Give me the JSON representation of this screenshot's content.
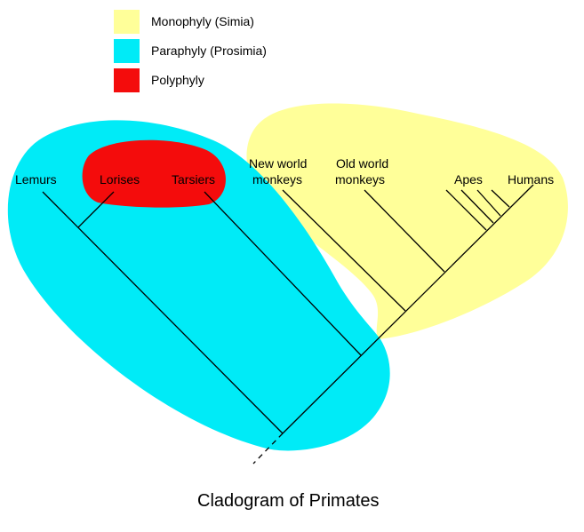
{
  "legend": {
    "items": [
      {
        "label": "Monophyly (Simia)",
        "color": "#ffff99"
      },
      {
        "label": "Paraphyly (Prosimia)",
        "color": "#00ebf7"
      },
      {
        "label": "Polyphyly",
        "color": "#f40c0c"
      }
    ]
  },
  "taxa": {
    "lemurs": "Lemurs",
    "lorises": "Lorises",
    "tarsiers": "Tarsiers",
    "new_world_1": "New world",
    "new_world_2": "monkeys",
    "old_world_1": "Old world",
    "old_world_2": "monkeys",
    "apes": "Apes",
    "humans": "Humans"
  },
  "title": "Cladogram of Primates"
}
